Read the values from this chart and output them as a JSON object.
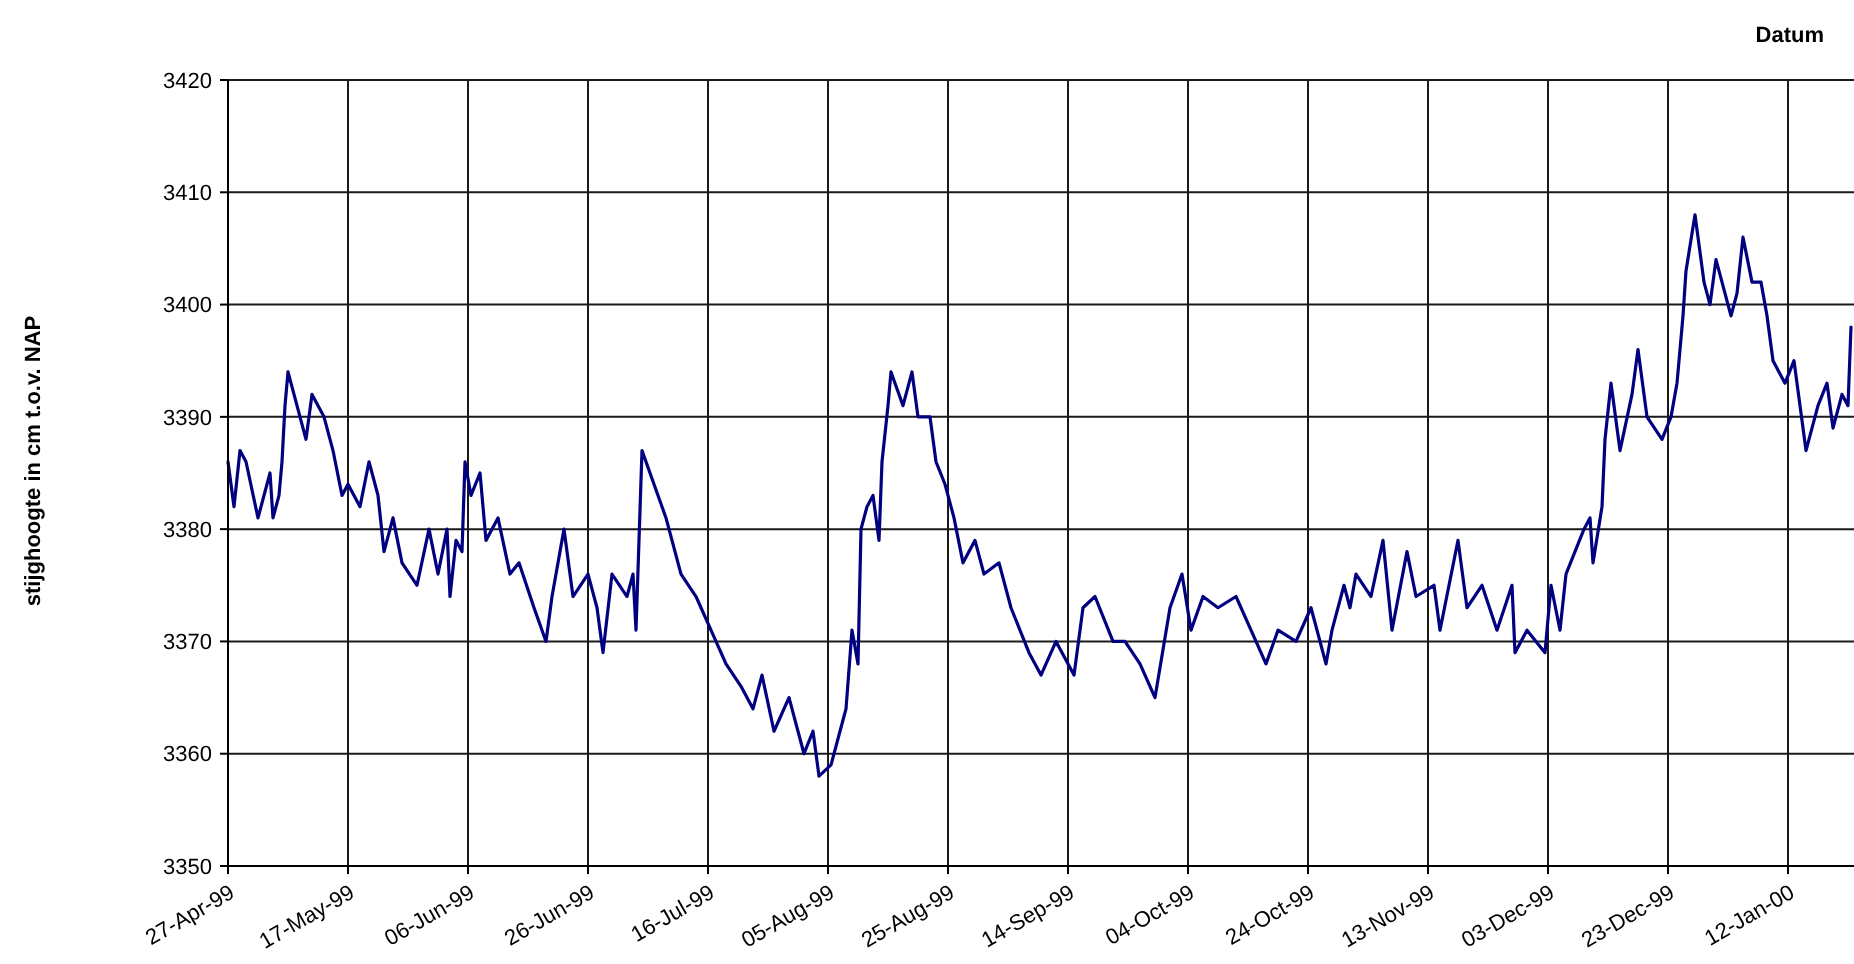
{
  "chart_data": {
    "type": "line",
    "xlabel": "Datum",
    "ylabel": "stijghoogte in cm t.o.v. NAP",
    "xlim": [
      "1999-04-27",
      "2000-01-23"
    ],
    "xticks": [
      {
        "value": "1999-04-27",
        "label": "27-Apr-99"
      },
      {
        "value": "1999-05-17",
        "label": "17-May-99"
      },
      {
        "value": "1999-06-06",
        "label": "06-Jun-99"
      },
      {
        "value": "1999-06-26",
        "label": "26-Jun-99"
      },
      {
        "value": "1999-07-16",
        "label": "16-Jul-99"
      },
      {
        "value": "1999-08-05",
        "label": "05-Aug-99"
      },
      {
        "value": "1999-08-25",
        "label": "25-Aug-99"
      },
      {
        "value": "1999-09-14",
        "label": "14-Sep-99"
      },
      {
        "value": "1999-10-04",
        "label": "04-Oct-99"
      },
      {
        "value": "1999-10-24",
        "label": "24-Oct-99"
      },
      {
        "value": "1999-11-13",
        "label": "13-Nov-99"
      },
      {
        "value": "1999-12-03",
        "label": "03-Dec-99"
      },
      {
        "value": "1999-12-23",
        "label": "23-Dec-99"
      },
      {
        "value": "2000-01-12",
        "label": "12-Jan-00"
      }
    ],
    "ylim": [
      3350,
      3420
    ],
    "yticks": [
      3350,
      3360,
      3370,
      3380,
      3390,
      3400,
      3410,
      3420
    ],
    "grid": true,
    "line_style": "solid",
    "x": [
      "1999-04-27",
      "1999-04-28",
      "1999-04-29",
      "1999-04-30",
      "1999-05-02",
      "1999-05-04",
      "1999-05-04T12:00",
      "1999-05-05T12:00",
      "1999-05-06",
      "1999-05-06T12:00",
      "1999-05-07",
      "1999-05-08T12:00",
      "1999-05-10",
      "1999-05-11",
      "1999-05-13",
      "1999-05-14T12:00",
      "1999-05-16",
      "1999-05-17",
      "1999-05-19",
      "1999-05-20T12:00",
      "1999-05-22",
      "1999-05-23",
      "1999-05-24T12:00",
      "1999-05-26",
      "1999-05-28T12:00",
      "1999-05-30T12:00",
      "1999-06-01",
      "1999-06-02T12:00",
      "1999-06-03",
      "1999-06-04",
      "1999-06-05",
      "1999-06-05T12:00",
      "1999-06-06T12:00",
      "1999-06-08",
      "1999-06-09",
      "1999-06-11",
      "1999-06-13",
      "1999-06-14T12:00",
      "1999-06-17",
      "1999-06-19",
      "1999-06-20",
      "1999-06-22",
      "1999-06-23T12:00",
      "1999-06-26",
      "1999-06-27T12:00",
      "1999-06-28T12:00",
      "1999-06-30",
      "1999-07-02T12:00",
      "1999-07-03T12:00",
      "1999-07-04",
      "1999-07-05",
      "1999-07-07",
      "1999-07-09",
      "1999-07-10",
      "1999-07-11T12:00",
      "1999-07-14",
      "1999-07-16T12:00",
      "1999-07-19",
      "1999-07-21T12:00",
      "1999-07-23T12:00",
      "1999-07-25",
      "1999-07-27",
      "1999-07-29T12:00",
      "1999-08-01",
      "1999-08-02T12:00",
      "1999-08-03T12:00",
      "1999-08-05T12:00",
      "1999-08-07",
      "1999-08-08",
      "1999-08-09",
      "1999-08-10",
      "1999-08-10T12:00",
      "1999-08-11T12:00",
      "1999-08-12T12:00",
      "1999-08-13T12:00",
      "1999-08-14",
      "1999-08-15",
      "1999-08-15T12:00",
      "1999-08-17T12:00",
      "1999-08-19",
      "1999-08-20",
      "1999-08-22",
      "1999-08-23",
      "1999-08-24T12:00",
      "1999-08-26",
      "1999-08-27T12:00",
      "1999-08-29T12:00",
      "1999-08-31",
      "1999-09-02T12:00",
      "1999-09-04T12:00",
      "1999-09-07T12:00",
      "1999-09-09T12:00",
      "1999-09-12",
      "1999-09-15",
      "1999-09-16T12:00",
      "1999-09-18T12:00",
      "1999-09-21T12:00",
      "1999-09-23T12:00",
      "1999-09-26",
      "1999-09-28T12:00",
      "1999-10-01",
      "1999-10-03",
      "1999-10-04T12:00",
      "1999-10-06T12:00",
      "1999-10-09",
      "1999-10-12",
      "1999-10-14T12:00",
      "1999-10-17",
      "1999-10-19",
      "1999-10-22",
      "1999-10-24T12:00",
      "1999-10-27",
      "1999-10-28",
      "1999-10-30",
      "1999-10-31",
      "1999-11-01",
      "1999-11-03T12:00",
      "1999-11-05T12:00",
      "1999-11-07",
      "1999-11-09T12:00",
      "1999-11-11",
      "1999-11-14",
      "1999-11-15",
      "1999-11-18",
      "1999-11-19T12:00",
      "1999-11-22",
      "1999-11-24T12:00",
      "1999-11-27",
      "1999-11-27T12:00",
      "1999-11-29T12:00",
      "1999-12-02T12:00",
      "1999-12-03T12:00",
      "1999-12-05",
      "1999-12-06",
      "1999-12-07T12:00",
      "1999-12-09",
      "1999-12-10",
      "1999-12-10T12:00",
      "1999-12-12",
      "1999-12-12T12:00",
      "1999-12-13T12:00",
      "1999-12-15",
      "1999-12-17",
      "1999-12-18",
      "1999-12-19T12:00",
      "1999-12-22",
      "1999-12-23T12:00",
      "1999-12-24T12:00",
      "1999-12-25T12:00",
      "1999-12-26",
      "1999-12-27T12:00",
      "1999-12-29",
      "1999-12-30",
      "1999-12-31",
      "2000-01-01T12:00",
      "2000-01-02T12:00",
      "2000-01-03T12:00",
      "2000-01-04T12:00",
      "2000-01-06",
      "2000-01-07T12:00",
      "2000-01-08T12:00",
      "2000-01-09T12:00",
      "2000-01-11T12:00",
      "2000-01-13",
      "2000-01-14",
      "2000-01-15",
      "2000-01-17",
      "2000-01-18T12:00",
      "2000-01-19T12:00",
      "2000-01-21",
      "2000-01-22",
      "2000-01-22T12:00"
    ],
    "series": [
      {
        "color": "#000080",
        "values": [
          3386,
          3382,
          3387,
          3386,
          3381,
          3385,
          3381,
          3383,
          3386,
          3391,
          3394,
          3391,
          3388,
          3392,
          3390,
          3387,
          3383,
          3384,
          3382,
          3386,
          3383,
          3378,
          3381,
          3377,
          3375,
          3380,
          3376,
          3380,
          3374,
          3379,
          3378,
          3386,
          3383,
          3385,
          3379,
          3381,
          3376,
          3377,
          3373,
          3370,
          3374,
          3380,
          3374,
          3376,
          3373,
          3369,
          3376,
          3374,
          3376,
          3371,
          3387,
          3384,
          3381,
          3379,
          3376,
          3374,
          3371,
          3368,
          3366,
          3364,
          3367,
          3362,
          3365,
          3360,
          3362,
          3358,
          3359,
          3362,
          3364,
          3371,
          3368,
          3380,
          3382,
          3383,
          3379,
          3386,
          3391,
          3394,
          3391,
          3394,
          3390,
          3390,
          3386,
          3384,
          3381,
          3377,
          3379,
          3376,
          3377,
          3373,
          3369,
          3367,
          3370,
          3367,
          3373,
          3374,
          3370,
          3370,
          3368,
          3365,
          3373,
          3376,
          3371,
          3374,
          3373,
          3374,
          3371,
          3368,
          3371,
          3370,
          3373,
          3368,
          3371,
          3375,
          3373,
          3376,
          3374,
          3379,
          3371,
          3378,
          3374,
          3375,
          3371,
          3379,
          3373,
          3375,
          3371,
          3375,
          3369,
          3371,
          3369,
          3375,
          3371,
          3376,
          3378,
          3380,
          3381,
          3377,
          3382,
          3388,
          3393,
          3387,
          3392,
          3396,
          3390,
          3388,
          3390,
          3393,
          3399,
          3403,
          3408,
          3402,
          3400,
          3404,
          3401,
          3399,
          3401,
          3406,
          3402,
          3402,
          3399,
          3395,
          3393,
          3395,
          3391,
          3387,
          3391,
          3393,
          3389,
          3392,
          3391,
          3398
        ]
      }
    ]
  }
}
